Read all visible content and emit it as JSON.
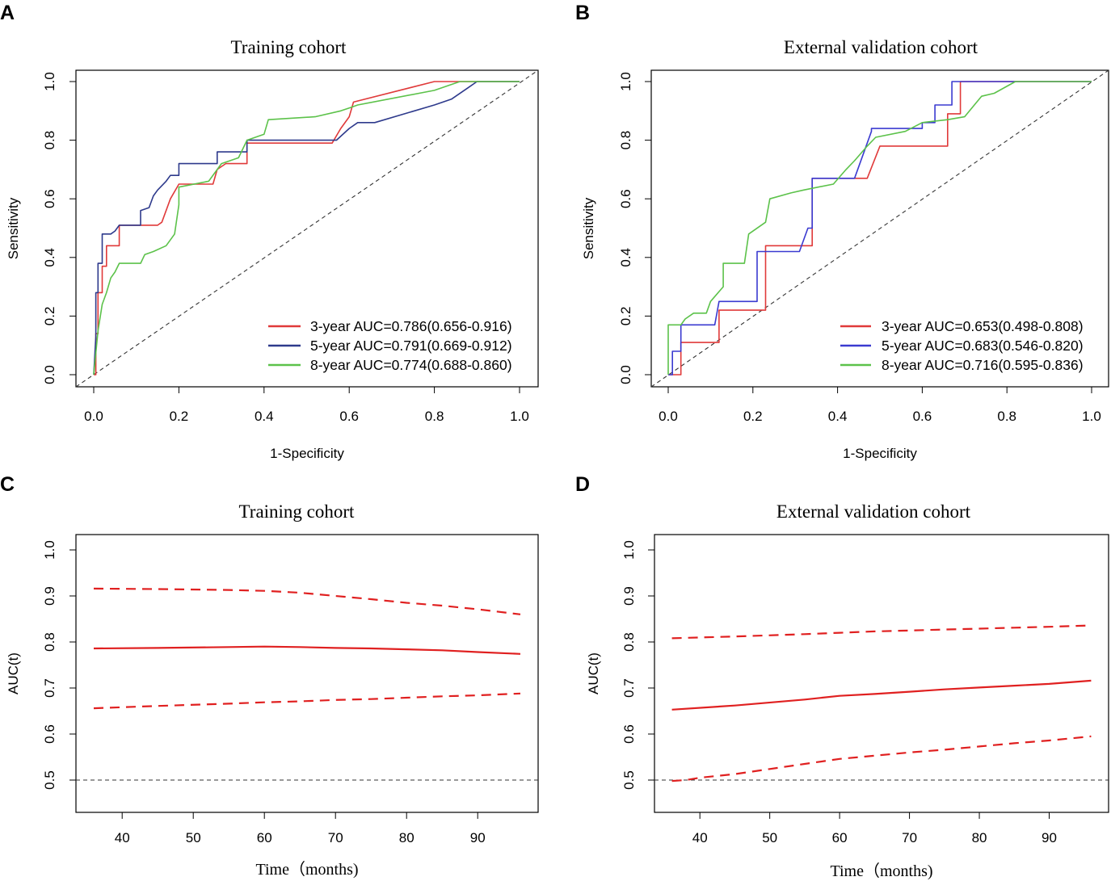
{
  "chart_data": [
    {
      "panel": "A",
      "type": "line",
      "subtype": "roc",
      "title": "Training cohort",
      "xlabel": "1-Specificity",
      "ylabel": "Sensitivity",
      "xlim": [
        0,
        1
      ],
      "ylim": [
        0,
        1
      ],
      "xticks": [
        "0.0",
        "0.2",
        "0.4",
        "0.6",
        "0.8",
        "1.0"
      ],
      "yticks": [
        "0.0",
        "0.2",
        "0.4",
        "0.6",
        "0.8",
        "1.0"
      ],
      "reference_line": "diagonal",
      "legend_position": "bottom-right",
      "series": [
        {
          "name": "3-year",
          "legend": "3-year AUC=0.786(0.656-0.916)",
          "color": "#e03a3a",
          "x": [
            0,
            0.005,
            0.005,
            0.01,
            0.01,
            0.02,
            0.02,
            0.03,
            0.03,
            0.06,
            0.06,
            0.15,
            0.16,
            0.18,
            0.2,
            0.28,
            0.29,
            0.31,
            0.36,
            0.36,
            0.56,
            0.58,
            0.6,
            0.61,
            0.8,
            0.9,
            1.0
          ],
          "y": [
            0,
            0,
            0.14,
            0.14,
            0.28,
            0.28,
            0.37,
            0.37,
            0.44,
            0.44,
            0.51,
            0.51,
            0.52,
            0.6,
            0.65,
            0.65,
            0.7,
            0.72,
            0.72,
            0.79,
            0.79,
            0.84,
            0.88,
            0.93,
            1.0,
            1.0,
            1.0
          ]
        },
        {
          "name": "5-year",
          "legend": "5-year AUC=0.791(0.669-0.912)",
          "color": "#2e3a8c",
          "x": [
            0,
            0.005,
            0.005,
            0.01,
            0.01,
            0.02,
            0.02,
            0.04,
            0.05,
            0.06,
            0.11,
            0.11,
            0.13,
            0.14,
            0.15,
            0.17,
            0.18,
            0.2,
            0.2,
            0.29,
            0.29,
            0.36,
            0.36,
            0.57,
            0.6,
            0.62,
            0.66,
            0.8,
            0.84,
            0.88,
            0.9,
            1.0
          ],
          "y": [
            0,
            0.13,
            0.28,
            0.28,
            0.38,
            0.38,
            0.48,
            0.48,
            0.49,
            0.51,
            0.51,
            0.56,
            0.57,
            0.61,
            0.63,
            0.66,
            0.68,
            0.68,
            0.72,
            0.72,
            0.76,
            0.76,
            0.8,
            0.8,
            0.84,
            0.86,
            0.86,
            0.92,
            0.94,
            0.98,
            1.0,
            1.0
          ]
        },
        {
          "name": "8-year",
          "legend": "8-year AUC=0.774(0.688-0.860)",
          "color": "#5cc24a",
          "x": [
            0,
            0.01,
            0.02,
            0.03,
            0.04,
            0.05,
            0.06,
            0.11,
            0.12,
            0.14,
            0.17,
            0.19,
            0.2,
            0.2,
            0.27,
            0.3,
            0.34,
            0.36,
            0.4,
            0.41,
            0.52,
            0.58,
            0.6,
            0.62,
            0.8,
            0.86,
            1.0
          ],
          "y": [
            0,
            0.15,
            0.24,
            0.28,
            0.33,
            0.35,
            0.38,
            0.38,
            0.41,
            0.42,
            0.44,
            0.48,
            0.58,
            0.64,
            0.66,
            0.72,
            0.74,
            0.8,
            0.82,
            0.87,
            0.88,
            0.9,
            0.91,
            0.92,
            0.97,
            1.0,
            1.0
          ]
        }
      ]
    },
    {
      "panel": "B",
      "type": "line",
      "subtype": "roc",
      "title": "External validation cohort",
      "xlabel": "1-Specificity",
      "ylabel": "Sensitivity",
      "xlim": [
        0,
        1
      ],
      "ylim": [
        0,
        1
      ],
      "xticks": [
        "0.0",
        "0.2",
        "0.4",
        "0.6",
        "0.8",
        "1.0"
      ],
      "yticks": [
        "0.0",
        "0.2",
        "0.4",
        "0.6",
        "0.8",
        "1.0"
      ],
      "reference_line": "diagonal",
      "legend_position": "bottom-right",
      "series": [
        {
          "name": "3-year",
          "legend": "3-year AUC=0.653(0.498-0.808)",
          "color": "#e03a3a",
          "x": [
            0,
            0.03,
            0.03,
            0.12,
            0.12,
            0.23,
            0.23,
            0.34,
            0.34,
            0.47,
            0.5,
            0.54,
            0.6,
            0.6,
            0.66,
            0.66,
            0.69,
            0.69,
            0.82,
            1.0
          ],
          "y": [
            0,
            0,
            0.11,
            0.11,
            0.22,
            0.22,
            0.44,
            0.44,
            0.67,
            0.67,
            0.78,
            0.78,
            0.78,
            0.78,
            0.78,
            0.89,
            0.89,
            1.0,
            1.0,
            1.0
          ]
        },
        {
          "name": "5-year",
          "legend": "5-year AUC=0.683(0.546-0.820)",
          "color": "#3a3ad0",
          "x": [
            0,
            0.01,
            0.01,
            0.03,
            0.03,
            0.11,
            0.12,
            0.21,
            0.21,
            0.31,
            0.33,
            0.34,
            0.34,
            0.44,
            0.48,
            0.48,
            0.57,
            0.6,
            0.6,
            0.63,
            0.63,
            0.67,
            0.67,
            0.82,
            1.0
          ],
          "y": [
            0,
            0,
            0.08,
            0.08,
            0.17,
            0.17,
            0.25,
            0.25,
            0.42,
            0.42,
            0.5,
            0.5,
            0.67,
            0.67,
            0.83,
            0.84,
            0.84,
            0.84,
            0.86,
            0.86,
            0.92,
            0.92,
            1.0,
            1.0,
            1.0
          ]
        },
        {
          "name": "8-year",
          "legend": "8-year AUC=0.716(0.595-0.836)",
          "color": "#5cc24a",
          "x": [
            0,
            0.0,
            0.03,
            0.04,
            0.06,
            0.09,
            0.1,
            0.13,
            0.13,
            0.18,
            0.19,
            0.23,
            0.24,
            0.29,
            0.32,
            0.39,
            0.42,
            0.44,
            0.47,
            0.49,
            0.56,
            0.6,
            0.66,
            0.7,
            0.74,
            0.77,
            0.82,
            1.0
          ],
          "y": [
            0,
            0.17,
            0.17,
            0.19,
            0.21,
            0.21,
            0.25,
            0.3,
            0.38,
            0.38,
            0.48,
            0.52,
            0.6,
            0.62,
            0.63,
            0.65,
            0.7,
            0.73,
            0.78,
            0.81,
            0.83,
            0.86,
            0.87,
            0.88,
            0.95,
            0.96,
            1.0,
            1.0
          ]
        }
      ]
    },
    {
      "panel": "C",
      "type": "line",
      "subtype": "time-dependent-auc",
      "title": "Training cohort",
      "xlabel": "Time（months)",
      "ylabel": "AUC(t)",
      "xlim": [
        33.5,
        98.5
      ],
      "ylim": [
        0.5,
        1.0
      ],
      "xticks": [
        "40",
        "50",
        "60",
        "70",
        "80",
        "90"
      ],
      "yticks": [
        "0.5",
        "0.6",
        "0.7",
        "0.8",
        "0.9",
        "1.0"
      ],
      "reference_line": "y=0.5",
      "series": [
        {
          "name": "AUC",
          "style": "solid",
          "color": "#e02020",
          "x": [
            36,
            45,
            55,
            60,
            65,
            70,
            75,
            80,
            85,
            90,
            96
          ],
          "y": [
            0.786,
            0.787,
            0.789,
            0.79,
            0.789,
            0.787,
            0.786,
            0.784,
            0.782,
            0.778,
            0.774
          ]
        },
        {
          "name": "Upper CI",
          "style": "dashed",
          "color": "#e02020",
          "x": [
            36,
            45,
            55,
            60,
            65,
            70,
            75,
            80,
            85,
            90,
            96
          ],
          "y": [
            0.916,
            0.915,
            0.913,
            0.911,
            0.907,
            0.9,
            0.893,
            0.885,
            0.879,
            0.871,
            0.86
          ]
        },
        {
          "name": "Lower CI",
          "style": "dashed",
          "color": "#e02020",
          "x": [
            36,
            45,
            55,
            60,
            65,
            70,
            75,
            80,
            85,
            90,
            96
          ],
          "y": [
            0.656,
            0.661,
            0.666,
            0.669,
            0.671,
            0.674,
            0.676,
            0.679,
            0.682,
            0.684,
            0.688
          ]
        }
      ]
    },
    {
      "panel": "D",
      "type": "line",
      "subtype": "time-dependent-auc",
      "title": "External validation cohort",
      "xlabel": "Time（months)",
      "ylabel": "AUC(t)",
      "xlim": [
        33.5,
        98.5
      ],
      "ylim": [
        0.5,
        1.0
      ],
      "xticks": [
        "40",
        "50",
        "60",
        "70",
        "80",
        "90"
      ],
      "yticks": [
        "0.5",
        "0.6",
        "0.7",
        "0.8",
        "0.9",
        "1.0"
      ],
      "reference_line": "y=0.5",
      "series": [
        {
          "name": "AUC",
          "style": "solid",
          "color": "#e02020",
          "x": [
            36,
            45,
            55,
            60,
            65,
            70,
            75,
            80,
            85,
            90,
            96
          ],
          "y": [
            0.653,
            0.662,
            0.675,
            0.683,
            0.687,
            0.692,
            0.697,
            0.701,
            0.705,
            0.709,
            0.716
          ]
        },
        {
          "name": "Upper CI",
          "style": "dashed",
          "color": "#e02020",
          "x": [
            36,
            45,
            55,
            60,
            65,
            70,
            75,
            80,
            85,
            90,
            96
          ],
          "y": [
            0.808,
            0.812,
            0.817,
            0.82,
            0.823,
            0.825,
            0.827,
            0.829,
            0.831,
            0.833,
            0.836
          ]
        },
        {
          "name": "Lower CI",
          "style": "dashed",
          "color": "#e02020",
          "x": [
            36,
            38,
            40,
            45,
            50,
            55,
            60,
            65,
            70,
            75,
            80,
            85,
            90,
            96
          ],
          "y": [
            0.498,
            0.5,
            0.505,
            0.513,
            0.524,
            0.535,
            0.546,
            0.553,
            0.56,
            0.566,
            0.573,
            0.58,
            0.586,
            0.595
          ]
        }
      ]
    }
  ],
  "panels": [
    {
      "label": "A"
    },
    {
      "label": "B"
    },
    {
      "label": "C"
    },
    {
      "label": "D"
    }
  ]
}
